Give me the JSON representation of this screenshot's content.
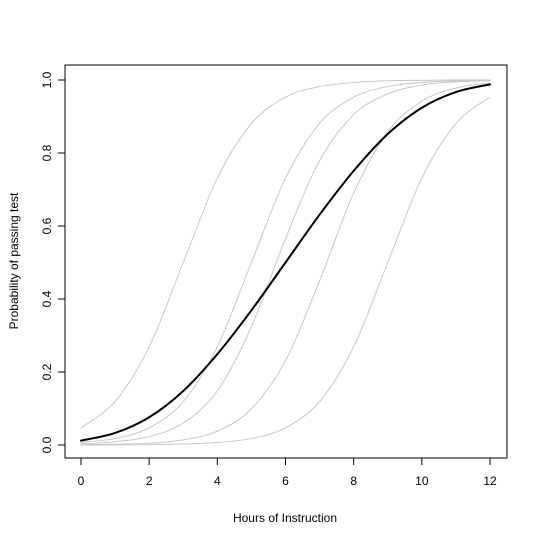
{
  "chart_data": {
    "type": "line",
    "title": "",
    "xlabel": "Hours of Instruction",
    "ylabel": "Probability of passing test",
    "xlim": [
      0,
      12
    ],
    "ylim": [
      0,
      1
    ],
    "grid": false,
    "x_ticks": [
      "0",
      "2",
      "4",
      "6",
      "8",
      "10",
      "12"
    ],
    "y_ticks": [
      "0.0",
      "0.2",
      "0.4",
      "0.6",
      "0.8",
      "1.0"
    ],
    "x": [
      0,
      1,
      2,
      3,
      4,
      5,
      6,
      7,
      8,
      9,
      10,
      11,
      12
    ],
    "series": [
      {
        "emphasis": "main",
        "color": "#000000",
        "values": [
          0.012,
          0.033,
          0.076,
          0.148,
          0.249,
          0.369,
          0.5,
          0.631,
          0.751,
          0.852,
          0.924,
          0.967,
          0.988
        ]
      },
      {
        "emphasis": "light",
        "color": "#c8c8c8",
        "values": [
          0.047,
          0.119,
          0.269,
          0.5,
          0.731,
          0.881,
          0.953,
          0.982,
          0.993,
          0.998,
          0.999,
          1.0,
          1.0
        ]
      },
      {
        "emphasis": "light",
        "color": "#c8c8c8",
        "values": [
          0.007,
          0.018,
          0.047,
          0.119,
          0.269,
          0.5,
          0.731,
          0.881,
          0.953,
          0.982,
          0.993,
          0.998,
          0.999
        ]
      },
      {
        "emphasis": "light",
        "color": "#c8c8c8",
        "values": [
          0.003,
          0.009,
          0.023,
          0.06,
          0.148,
          0.324,
          0.565,
          0.779,
          0.905,
          0.962,
          0.986,
          0.995,
          0.998
        ]
      },
      {
        "emphasis": "light",
        "color": "#c8c8c8",
        "values": [
          0.001,
          0.002,
          0.005,
          0.014,
          0.038,
          0.099,
          0.231,
          0.45,
          0.69,
          0.858,
          0.942,
          0.978,
          0.992
        ]
      },
      {
        "emphasis": "light",
        "color": "#c8c8c8",
        "values": [
          0.0,
          0.0,
          0.001,
          0.003,
          0.007,
          0.018,
          0.047,
          0.119,
          0.269,
          0.5,
          0.731,
          0.881,
          0.953
        ]
      }
    ]
  }
}
